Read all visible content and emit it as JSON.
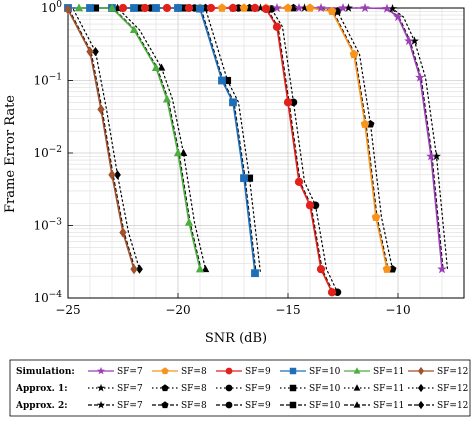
{
  "chart_data": {
    "type": "line",
    "xlabel": "SNR (dB)",
    "ylabel": "Frame Error Rate",
    "xlim": [
      -25,
      -7
    ],
    "ylim": [
      0.0001,
      1
    ],
    "y_scale": "log",
    "grid": true,
    "x_ticks": [
      "−25",
      "−20",
      "−15",
      "−10"
    ],
    "x_tick_values": [
      -25,
      -20,
      -15,
      -10
    ],
    "y_ticks": [
      "10^-4",
      "10^-3",
      "10^-2",
      "10^-1",
      "10^0"
    ],
    "y_tick_labels": [
      {
        "base": "10",
        "exp": "−4"
      },
      {
        "base": "10",
        "exp": "−3"
      },
      {
        "base": "10",
        "exp": "−2"
      },
      {
        "base": "10",
        "exp": "−1"
      },
      {
        "base": "10",
        "exp": "0"
      }
    ],
    "legend": {
      "placement": "bottom",
      "rows": [
        "Simulation:",
        "Approx. 1:",
        "Approx. 2:"
      ],
      "entries": [
        "SF=7",
        "SF=8",
        "SF=9",
        "SF=10",
        "SF=11",
        "SF=12"
      ]
    },
    "colors": {
      "SF=7": "#9b3fb5",
      "SF=8": "#f7941d",
      "SF=9": "#e2211c",
      "SF=10": "#1f6fb8",
      "SF=11": "#4cae3f",
      "SF=12": "#a0522d"
    },
    "series": [
      {
        "name": "SF=7",
        "group": "Simulation",
        "marker": "star",
        "x": [
          -17.5,
          -16.5,
          -15.5,
          -14.5,
          -13.5,
          -12.5,
          -11.5,
          -10.5,
          -10.0,
          -9.5,
          -9.0,
          -8.5,
          -8.0
        ],
        "y": [
          1,
          1,
          1,
          1,
          1,
          1,
          1,
          0.98,
          0.75,
          0.35,
          0.11,
          0.009,
          0.00025
        ]
      },
      {
        "name": "SF=8",
        "group": "Simulation",
        "marker": "pentagon",
        "x": [
          -20.0,
          -19.0,
          -18.0,
          -17.0,
          -16.0,
          -15.0,
          -14.0,
          -13.0,
          -12.0,
          -11.5,
          -11.0,
          -10.5
        ],
        "y": [
          1,
          1,
          1,
          1,
          1,
          1,
          1,
          0.9,
          0.23,
          0.025,
          0.0013,
          0.00025
        ]
      },
      {
        "name": "SF=9",
        "group": "Simulation",
        "marker": "circle",
        "x": [
          -22.5,
          -21.5,
          -20.5,
          -19.5,
          -18.5,
          -17.5,
          -16.5,
          -16.0,
          -15.5,
          -15.0,
          -14.5,
          -14.0,
          -13.5,
          -13.0
        ],
        "y": [
          1,
          1,
          1,
          1,
          1,
          1,
          1,
          0.97,
          0.55,
          0.05,
          0.004,
          0.0019,
          0.00025,
          0.00012
        ]
      },
      {
        "name": "SF=10",
        "group": "Simulation",
        "marker": "square",
        "x": [
          -25.0,
          -24.0,
          -23.0,
          -22.0,
          -21.0,
          -20.0,
          -19.0,
          -18.0,
          -17.5,
          -17.0,
          -16.5
        ],
        "y": [
          1,
          1,
          1,
          1,
          1,
          1,
          0.98,
          0.1,
          0.05,
          0.0045,
          0.00022
        ]
      },
      {
        "name": "SF=11",
        "group": "Simulation",
        "marker": "triangle",
        "x": [
          -24.5,
          -23.0,
          -22.0,
          -21.0,
          -20.5,
          -20.0,
          -19.5,
          -19.0
        ],
        "y": [
          1,
          1,
          0.5,
          0.15,
          0.055,
          0.01,
          0.0011,
          0.00025
        ]
      },
      {
        "name": "SF=12",
        "group": "Simulation",
        "marker": "diamond",
        "x": [
          -25.0,
          -24.0,
          -23.5,
          -23.0,
          -22.5,
          -22.0
        ],
        "y": [
          0.95,
          0.25,
          0.04,
          0.005,
          0.0008,
          0.00025
        ]
      }
    ]
  }
}
